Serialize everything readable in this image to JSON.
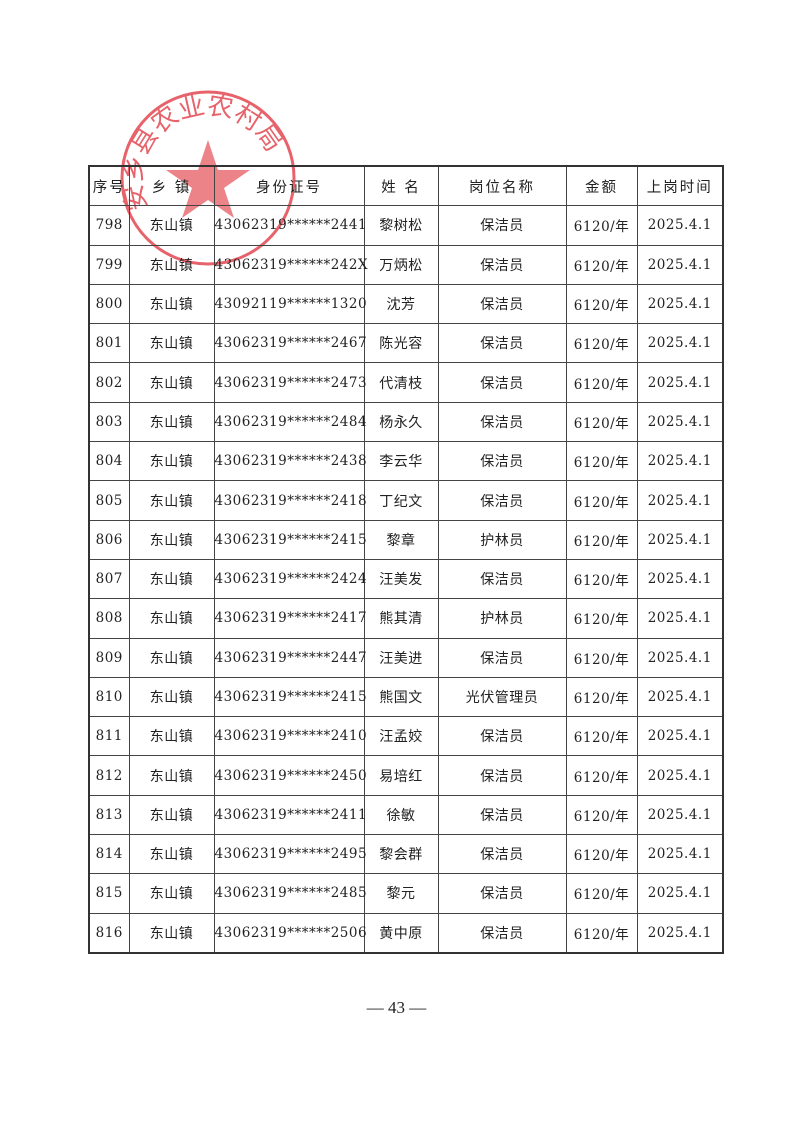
{
  "table": {
    "headers": [
      "序号",
      "乡 镇",
      "身份证号",
      "姓 名",
      "岗位名称",
      "金额",
      "上岗时间"
    ],
    "rows": [
      [
        "798",
        "东山镇",
        "43062319******2441",
        "黎树松",
        "保洁员",
        "6120/年",
        "2025.4.1"
      ],
      [
        "799",
        "东山镇",
        "43062319******242X",
        "万炳松",
        "保洁员",
        "6120/年",
        "2025.4.1"
      ],
      [
        "800",
        "东山镇",
        "43092119******1320",
        "沈芳",
        "保洁员",
        "6120/年",
        "2025.4.1"
      ],
      [
        "801",
        "东山镇",
        "43062319******2467",
        "陈光容",
        "保洁员",
        "6120/年",
        "2025.4.1"
      ],
      [
        "802",
        "东山镇",
        "43062319******2473",
        "代清枝",
        "保洁员",
        "6120/年",
        "2025.4.1"
      ],
      [
        "803",
        "东山镇",
        "43062319******2484",
        "杨永久",
        "保洁员",
        "6120/年",
        "2025.4.1"
      ],
      [
        "804",
        "东山镇",
        "43062319******2438",
        "李云华",
        "保洁员",
        "6120/年",
        "2025.4.1"
      ],
      [
        "805",
        "东山镇",
        "43062319******2418",
        "丁纪文",
        "保洁员",
        "6120/年",
        "2025.4.1"
      ],
      [
        "806",
        "东山镇",
        "43062319******2415",
        "黎章",
        "护林员",
        "6120/年",
        "2025.4.1"
      ],
      [
        "807",
        "东山镇",
        "43062319******2424",
        "汪美发",
        "保洁员",
        "6120/年",
        "2025.4.1"
      ],
      [
        "808",
        "东山镇",
        "43062319******2417",
        "熊其清",
        "护林员",
        "6120/年",
        "2025.4.1"
      ],
      [
        "809",
        "东山镇",
        "43062319******2447",
        "汪美进",
        "保洁员",
        "6120/年",
        "2025.4.1"
      ],
      [
        "810",
        "东山镇",
        "43062319******2415",
        "熊国文",
        "光伏管理员",
        "6120/年",
        "2025.4.1"
      ],
      [
        "811",
        "东山镇",
        "43062319******2410",
        "汪孟姣",
        "保洁员",
        "6120/年",
        "2025.4.1"
      ],
      [
        "812",
        "东山镇",
        "43062319******2450",
        "易培红",
        "保洁员",
        "6120/年",
        "2025.4.1"
      ],
      [
        "813",
        "东山镇",
        "43062319******2411",
        "徐敏",
        "保洁员",
        "6120/年",
        "2025.4.1"
      ],
      [
        "814",
        "东山镇",
        "43062319******2495",
        "黎会群",
        "保洁员",
        "6120/年",
        "2025.4.1"
      ],
      [
        "815",
        "东山镇",
        "43062319******2485",
        "黎元",
        "保洁员",
        "6120/年",
        "2025.4.1"
      ],
      [
        "816",
        "东山镇",
        "43062319******2506",
        "黄中原",
        "保洁员",
        "6120/年",
        "2025.4.1"
      ]
    ]
  },
  "stamp": {
    "text": "安乡县农业农村局",
    "color": "#e0303a"
  },
  "footer": {
    "page_number": "— 43 —"
  }
}
